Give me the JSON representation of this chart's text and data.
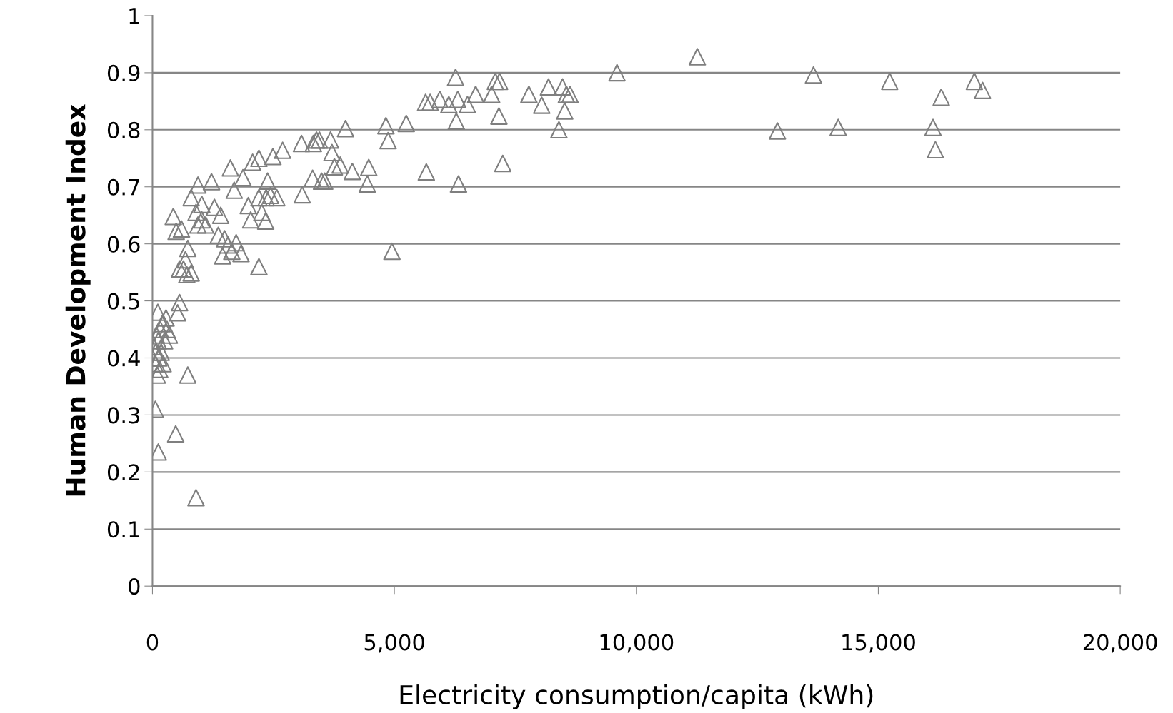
{
  "chart_data": {
    "type": "scatter",
    "xlabel": "Electricity consumption/capita (kWh)",
    "ylabel": "Human Development Index",
    "xlim": [
      0,
      20000
    ],
    "ylim": [
      0,
      1
    ],
    "xticks": [
      0,
      {
        "value": 5000,
        "label": "5,000"
      },
      {
        "value": 10000,
        "label": "10,000"
      },
      {
        "value": 15000,
        "label": "15,000"
      },
      {
        "value": 20000,
        "label": "20,000"
      }
    ],
    "yticks": [
      0,
      0.1,
      0.2,
      0.3,
      0.4,
      0.5,
      0.6,
      0.7,
      0.8,
      0.9,
      1
    ],
    "grid": "y",
    "marker": "triangle",
    "series": [
      {
        "color": "#7f7f7f",
        "x": [
          60,
          120,
          480,
          900,
          730,
          0,
          30,
          50,
          60,
          80,
          100,
          110,
          120,
          130,
          150,
          160,
          180,
          200,
          220,
          250,
          280,
          300,
          350,
          520,
          560,
          430,
          490,
          600,
          560,
          640,
          710,
          800,
          680,
          730,
          800,
          940,
          900,
          940,
          1020,
          1100,
          1020,
          1220,
          1280,
          1360,
          1410,
          1450,
          1490,
          1560,
          1640,
          1610,
          1690,
          1730,
          1830,
          1870,
          1980,
          2030,
          2070,
          2200,
          2200,
          2200,
          2260,
          2340,
          2380,
          2350,
          2440,
          2490,
          2570,
          2690,
          3095,
          3080,
          3325,
          3390,
          3310,
          3450,
          3495,
          3560,
          3680,
          3710,
          3760,
          3880,
          3990,
          4130,
          4440,
          4470,
          4825,
          4870,
          5245,
          4950,
          5660,
          5645,
          5740,
          5940,
          6125,
          6265,
          6310,
          6280,
          6325,
          6510,
          6680,
          7010,
          7085,
          7175,
          7160,
          7240,
          7780,
          8045,
          8185,
          8400,
          8475,
          8520,
          8555,
          8630,
          9600,
          11260,
          12915,
          13660,
          14170,
          15235,
          16130,
          16180,
          16300,
          16985,
          17155
        ],
        "values": [
          0.31,
          0.235,
          0.267,
          0.155,
          0.37,
          0.4,
          0.42,
          0.39,
          0.41,
          0.44,
          0.37,
          0.48,
          0.43,
          0.4,
          0.38,
          0.45,
          0.41,
          0.46,
          0.39,
          0.43,
          0.47,
          0.45,
          0.44,
          0.479,
          0.497,
          0.648,
          0.622,
          0.626,
          0.556,
          0.556,
          0.546,
          0.549,
          0.572,
          0.592,
          0.681,
          0.703,
          0.655,
          0.633,
          0.669,
          0.633,
          0.642,
          0.709,
          0.664,
          0.615,
          0.65,
          0.579,
          0.609,
          0.598,
          0.587,
          0.733,
          0.694,
          0.602,
          0.583,
          0.716,
          0.667,
          0.642,
          0.743,
          0.75,
          0.56,
          0.681,
          0.655,
          0.64,
          0.71,
          0.681,
          0.685,
          0.753,
          0.681,
          0.764,
          0.686,
          0.776,
          0.776,
          0.782,
          0.715,
          0.782,
          0.71,
          0.71,
          0.782,
          0.76,
          0.735,
          0.738,
          0.802,
          0.727,
          0.705,
          0.734,
          0.807,
          0.781,
          0.811,
          0.587,
          0.726,
          0.848,
          0.848,
          0.853,
          0.844,
          0.892,
          0.853,
          0.815,
          0.705,
          0.844,
          0.862,
          0.862,
          0.885,
          0.885,
          0.824,
          0.741,
          0.862,
          0.843,
          0.875,
          0.8,
          0.875,
          0.833,
          0.862,
          0.862,
          0.9,
          0.928,
          0.798,
          0.896,
          0.804,
          0.885,
          0.804,
          0.765,
          0.857,
          0.885,
          0.869
        ]
      }
    ]
  }
}
